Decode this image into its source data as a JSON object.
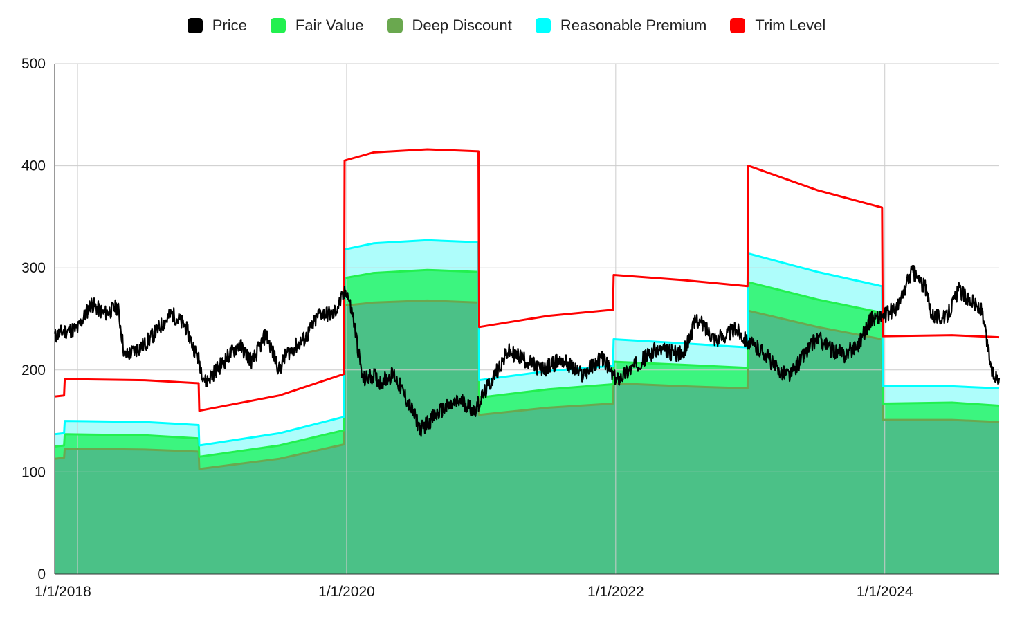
{
  "chart_data": {
    "type": "area",
    "title": "",
    "xlabel": "",
    "ylabel": "",
    "ylim": [
      0,
      500
    ],
    "yticks": [
      0,
      100,
      200,
      300,
      400,
      500
    ],
    "xlim": [
      2017.83,
      2024.85
    ],
    "xticks": [
      {
        "value": 2018,
        "label": "1/1/2018"
      },
      {
        "value": 2020,
        "label": "1/1/2020"
      },
      {
        "value": 2022,
        "label": "1/1/2022"
      },
      {
        "value": 2024,
        "label": "1/1/2024"
      }
    ],
    "grid": true,
    "legend_position": "top-center",
    "colors": {
      "price": "#000000",
      "fair_value": "#22f04f",
      "deep_discount": "#6aa84f",
      "reasonable_premium": "#00ffff",
      "trim_level": "#ff0000",
      "deep_fill": "#4bc187",
      "fair_fill": "#3cf57f",
      "premium_fill": "#aefdfb"
    },
    "legend": [
      {
        "key": "price",
        "label": "Price",
        "color": "#000000"
      },
      {
        "key": "fair_value",
        "label": "Fair Value",
        "color": "#22f04f"
      },
      {
        "key": "deep_discount",
        "label": "Deep Discount",
        "color": "#6aa84f"
      },
      {
        "key": "reasonable_premium",
        "label": "Reasonable Premium",
        "color": "#00ffff"
      },
      {
        "key": "trim_level",
        "label": "Trim Level",
        "color": "#ff0000"
      }
    ],
    "series": [
      {
        "name": "Deep Discount",
        "key": "deep_discount",
        "x": [
          2017.83,
          2017.9,
          2017.905,
          2018.5,
          2018.9,
          2018.905,
          2019.5,
          2019.98,
          2019.985,
          2020.2,
          2020.6,
          2020.98,
          2020.985,
          2021.5,
          2021.98,
          2021.985,
          2022.5,
          2022.98,
          2022.985,
          2023.5,
          2023.98,
          2023.985,
          2024.5,
          2024.85
        ],
        "values": [
          113,
          114,
          123,
          122,
          120,
          103,
          113,
          127,
          263,
          266,
          268,
          266,
          156,
          163,
          167,
          187,
          184,
          182,
          258,
          242,
          230,
          151,
          151,
          149
        ]
      },
      {
        "name": "Fair Value",
        "key": "fair_value",
        "x": [
          2017.83,
          2017.9,
          2017.905,
          2018.5,
          2018.9,
          2018.905,
          2019.5,
          2019.98,
          2019.985,
          2020.2,
          2020.6,
          2020.98,
          2020.985,
          2021.5,
          2021.98,
          2021.985,
          2022.5,
          2022.98,
          2022.985,
          2023.5,
          2023.98,
          2023.985,
          2024.5,
          2024.85
        ],
        "values": [
          125,
          126,
          137,
          136,
          133,
          115,
          126,
          141,
          290,
          295,
          298,
          296,
          173,
          181,
          186,
          208,
          205,
          202,
          286,
          269,
          256,
          167,
          168,
          165
        ]
      },
      {
        "name": "Reasonable Premium",
        "key": "reasonable_premium",
        "x": [
          2017.83,
          2017.9,
          2017.905,
          2018.5,
          2018.9,
          2018.905,
          2019.5,
          2019.98,
          2019.985,
          2020.2,
          2020.6,
          2020.98,
          2020.985,
          2021.5,
          2021.98,
          2021.985,
          2022.5,
          2022.98,
          2022.985,
          2023.5,
          2023.98,
          2023.985,
          2024.5,
          2024.85
        ],
        "values": [
          137,
          138,
          150,
          149,
          146,
          126,
          138,
          154,
          318,
          324,
          327,
          325,
          190,
          199,
          204,
          230,
          226,
          222,
          314,
          296,
          282,
          184,
          184,
          182
        ]
      },
      {
        "name": "Trim Level",
        "key": "trim_level",
        "x": [
          2017.83,
          2017.9,
          2017.905,
          2018.5,
          2018.9,
          2018.905,
          2019.5,
          2019.98,
          2019.985,
          2020.2,
          2020.6,
          2020.98,
          2020.985,
          2021.5,
          2021.98,
          2021.985,
          2022.5,
          2022.98,
          2022.985,
          2023.5,
          2023.98,
          2023.985,
          2024.5,
          2024.85
        ],
        "values": [
          174,
          175,
          191,
          190,
          187,
          160,
          175,
          196,
          405,
          413,
          416,
          414,
          242,
          253,
          259,
          293,
          288,
          282,
          400,
          376,
          359,
          233,
          234,
          232
        ]
      },
      {
        "name": "Price",
        "key": "price",
        "x": [
          2017.83,
          2017.9,
          2018.0,
          2018.1,
          2018.2,
          2018.3,
          2018.35,
          2018.5,
          2018.6,
          2018.7,
          2018.8,
          2018.9,
          2018.95,
          2019.1,
          2019.2,
          2019.3,
          2019.4,
          2019.5,
          2019.55,
          2019.7,
          2019.8,
          2019.9,
          2020.0,
          2020.05,
          2020.12,
          2020.2,
          2020.25,
          2020.35,
          2020.45,
          2020.55,
          2020.7,
          2020.85,
          2020.95,
          2021.1,
          2021.2,
          2021.3,
          2021.45,
          2021.6,
          2021.75,
          2021.9,
          2022.0,
          2022.1,
          2022.3,
          2022.5,
          2022.6,
          2022.75,
          2022.9,
          2023.0,
          2023.1,
          2023.2,
          2023.3,
          2023.4,
          2023.5,
          2023.6,
          2023.7,
          2023.8,
          2023.9,
          2024.0,
          2024.1,
          2024.2,
          2024.3,
          2024.35,
          2024.45,
          2024.55,
          2024.65,
          2024.72,
          2024.8,
          2024.85
        ],
        "values": [
          233,
          238,
          240,
          265,
          255,
          262,
          213,
          225,
          240,
          255,
          243,
          210,
          188,
          210,
          225,
          208,
          235,
          200,
          215,
          232,
          256,
          254,
          278,
          250,
          190,
          195,
          188,
          196,
          170,
          142,
          160,
          170,
          160,
          195,
          218,
          212,
          200,
          210,
          195,
          212,
          190,
          200,
          220,
          215,
          250,
          230,
          240,
          225,
          218,
          200,
          195,
          215,
          232,
          220,
          215,
          225,
          250,
          253,
          262,
          297,
          280,
          255,
          250,
          278,
          267,
          257,
          196,
          192
        ]
      }
    ]
  }
}
